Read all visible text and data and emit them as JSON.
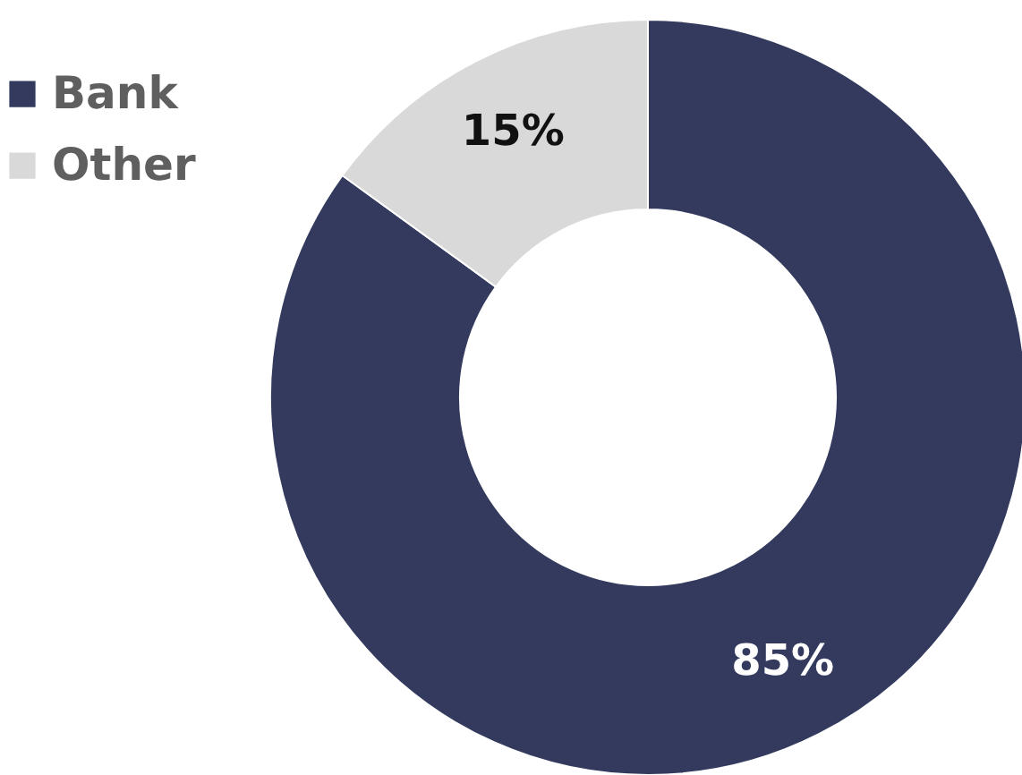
{
  "chart_data": {
    "type": "donut",
    "categories": [
      "Bank",
      "Other"
    ],
    "values": [
      85,
      15
    ],
    "colors": [
      "#333a5e",
      "#d9d9d9"
    ],
    "value_labels": [
      "85%",
      "15%"
    ],
    "legend": "top left"
  }
}
